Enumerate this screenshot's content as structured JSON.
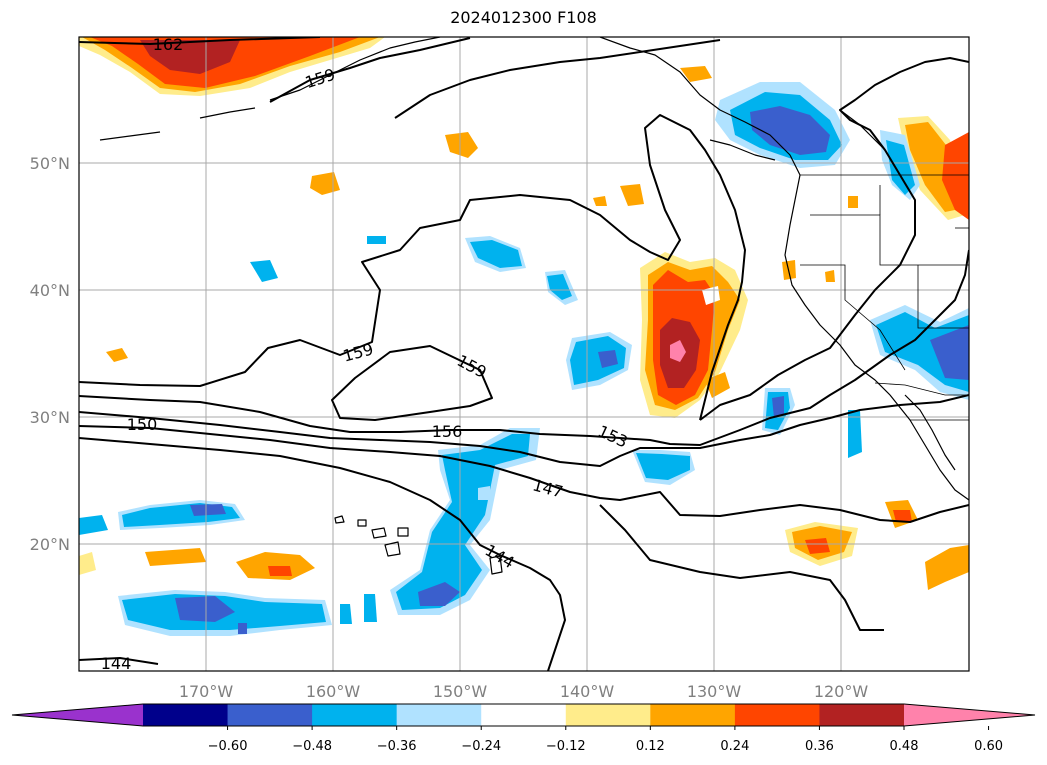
{
  "title": "2024012300 F108",
  "lon_labels": [
    "170°W",
    "160°W",
    "150°W",
    "140°W",
    "130°W",
    "120°W"
  ],
  "lat_labels": [
    "50°N",
    "40°N",
    "30°N",
    "20°N"
  ],
  "colorbar": {
    "colors": [
      "#9a32cd",
      "#00008b",
      "#3a5fcd",
      "#00b2ee",
      "#b0e2ff",
      "#ffffff",
      "#ffec8b",
      "#ffa500",
      "#ff4500",
      "#b22222",
      "#ff82ab"
    ],
    "tick_labels": [
      "−0.60",
      "−0.48",
      "−0.36",
      "−0.24",
      "−0.12",
      "0.12",
      "0.24",
      "0.36",
      "0.48",
      "0.60"
    ]
  },
  "contour_labels": [
    "162",
    "159",
    "159",
    "159",
    "150",
    "156",
    "153",
    "147",
    "144",
    "144"
  ],
  "palette": {
    "pos_light": "#ffec8b",
    "pos_mid": "#ffa500",
    "pos_strong": "#ff4500",
    "pos_max": "#b22222",
    "pos_extreme": "#ff82ab",
    "neg_light": "#b0e2ff",
    "neg_mid": "#00b2ee",
    "neg_strong": "#3a5fcd"
  }
}
